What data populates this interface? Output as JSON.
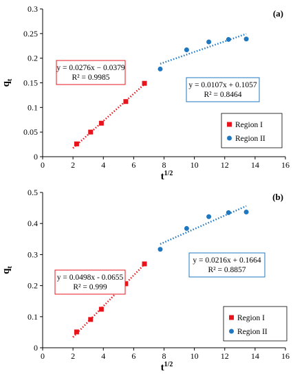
{
  "chart_data": [
    {
      "type": "scatter",
      "panel_label": "(a)",
      "xlabel": "t",
      "xlabel_sup": "1/2",
      "ylabel": "q",
      "ylabel_sub": "t",
      "xlim": [
        0,
        16
      ],
      "ylim": [
        0,
        0.3
      ],
      "x_ticks": [
        0,
        2,
        4,
        6,
        8,
        10,
        12,
        14,
        16
      ],
      "y_ticks": [
        0,
        0.05,
        0.1,
        0.15,
        0.2,
        0.25,
        0.3
      ],
      "y_tick_labels": [
        "0",
        "0.05",
        "0.1",
        "0.15",
        "0.2",
        "0.25",
        "0.3"
      ],
      "grid": false,
      "legend_position": "bottom-right",
      "series": [
        {
          "name": "Region I",
          "marker": "square",
          "color": "#e8141c",
          "x": [
            2.24,
            3.16,
            3.87,
            5.48,
            6.71
          ],
          "y": [
            0.026,
            0.05,
            0.068,
            0.112,
            0.149
          ],
          "trendline": {
            "x": [
              2.0,
              6.71
            ],
            "equation": "y = 0.0276x − 0.0379",
            "r2": "R² = 0.9985",
            "slope": 0.0276,
            "intercept": -0.0379
          }
        },
        {
          "name": "Region II",
          "marker": "circle",
          "color": "#1f77c0",
          "x": [
            7.75,
            9.49,
            10.95,
            12.25,
            13.42
          ],
          "y": [
            0.178,
            0.217,
            0.233,
            0.238,
            0.239
          ],
          "trendline": {
            "x": [
              7.75,
              13.42
            ],
            "equation": "y = 0.0107x + 0.1057",
            "r2": "R² = 0.8464",
            "slope": 0.0107,
            "intercept": 0.1057
          }
        }
      ]
    },
    {
      "type": "scatter",
      "panel_label": "(b)",
      "xlabel": "t",
      "xlabel_sup": "1/2",
      "ylabel": "q",
      "ylabel_sub": "t",
      "xlim": [
        0,
        16
      ],
      "ylim": [
        0,
        0.5
      ],
      "x_ticks": [
        0,
        2,
        4,
        6,
        8,
        10,
        12,
        14,
        16
      ],
      "y_ticks": [
        0,
        0.1,
        0.2,
        0.3,
        0.4,
        0.5
      ],
      "y_tick_labels": [
        "0",
        "0.1",
        "0.2",
        "0.3",
        "0.4",
        "0.5"
      ],
      "grid": false,
      "legend_position": "bottom-right",
      "series": [
        {
          "name": "Region I",
          "marker": "square",
          "color": "#e8141c",
          "x": [
            2.24,
            3.16,
            3.87,
            5.48,
            6.71
          ],
          "y": [
            0.051,
            0.091,
            0.124,
            0.206,
            0.27
          ],
          "trendline": {
            "x": [
              2.0,
              6.71
            ],
            "equation": "y = 0.0498x  - 0.0655",
            "r2": "R² = 0.999",
            "slope": 0.0498,
            "intercept": -0.0655
          }
        },
        {
          "name": "Region II",
          "marker": "circle",
          "color": "#1f77c0",
          "x": [
            7.75,
            9.49,
            10.95,
            12.25,
            13.42
          ],
          "y": [
            0.317,
            0.384,
            0.422,
            0.435,
            0.437
          ],
          "trendline": {
            "x": [
              7.75,
              13.42
            ],
            "equation": "y = 0.0216x + 0.1664",
            "r2": "R² = 0.8857",
            "slope": 0.0216,
            "intercept": 0.1664
          }
        }
      ]
    }
  ]
}
